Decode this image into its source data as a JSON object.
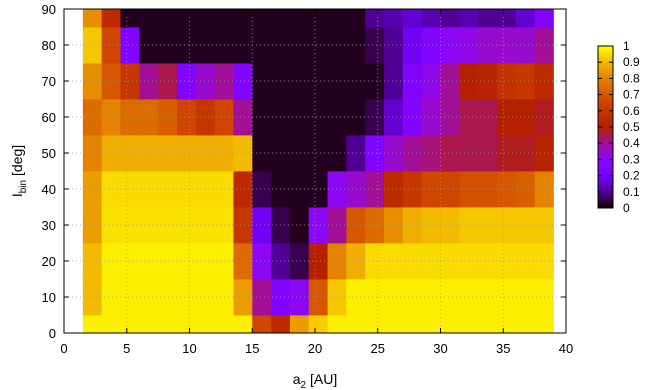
{
  "chart_data": {
    "type": "heatmap",
    "title": "",
    "xlabel": "a",
    "xlabel_sub": "2",
    "xlabel_unit": " [AU]",
    "ylabel": "I",
    "ylabel_sub": "bin",
    "ylabel_unit": " [deg]",
    "xlim": [
      0,
      40
    ],
    "ylim": [
      0,
      90
    ],
    "xticks": [
      "0",
      "5",
      "10",
      "15",
      "20",
      "25",
      "30",
      "35",
      "40"
    ],
    "yticks": [
      "0",
      "10",
      "20",
      "30",
      "40",
      "50",
      "60",
      "70",
      "80",
      "90"
    ],
    "grid": true,
    "colorbar": {
      "range": [
        0,
        1
      ],
      "ticks": [
        "0",
        "0.1",
        "0.2",
        "0.3",
        "0.4",
        "0.5",
        "0.6",
        "0.7",
        "0.8",
        "0.9",
        "1"
      ],
      "placement": "right"
    },
    "x_bins": [
      1.5,
      3,
      4.5,
      6,
      7.5,
      9,
      10.5,
      12,
      13.5,
      15,
      16.5,
      18,
      19.5,
      21,
      22.5,
      24,
      25.5,
      27,
      28.5,
      30,
      31.5,
      33,
      34.5,
      36,
      37.5,
      39
    ],
    "y_bins": [
      0,
      5,
      15,
      25,
      35,
      45,
      55,
      65,
      75,
      85,
      90
    ],
    "values": [
      [
        0.98,
        0.98,
        0.98,
        0.98,
        0.98,
        0.98,
        0.98,
        0.98,
        0.98,
        0.65,
        0.55,
        0.85,
        0.93,
        0.98,
        0.98,
        0.98,
        0.98,
        0.98,
        0.98,
        0.98,
        0.98,
        0.98,
        0.98,
        0.98,
        0.98
      ],
      [
        0.9,
        0.98,
        0.98,
        0.98,
        0.98,
        0.98,
        0.98,
        0.98,
        0.85,
        0.4,
        0.25,
        0.3,
        0.7,
        0.92,
        0.98,
        0.98,
        0.98,
        0.98,
        0.98,
        0.98,
        0.98,
        0.98,
        0.98,
        0.98,
        0.98
      ],
      [
        0.9,
        0.98,
        0.98,
        0.98,
        0.98,
        0.98,
        0.98,
        0.98,
        0.75,
        0.3,
        0.1,
        0.05,
        0.5,
        0.8,
        0.88,
        0.95,
        0.95,
        0.95,
        0.95,
        0.95,
        0.95,
        0.95,
        0.95,
        0.95,
        0.95
      ],
      [
        0.85,
        0.96,
        0.96,
        0.96,
        0.96,
        0.96,
        0.96,
        0.96,
        0.6,
        0.2,
        0.05,
        0.02,
        0.3,
        0.4,
        0.7,
        0.75,
        0.82,
        0.88,
        0.9,
        0.9,
        0.92,
        0.92,
        0.92,
        0.92,
        0.92
      ],
      [
        0.85,
        0.95,
        0.95,
        0.95,
        0.95,
        0.95,
        0.95,
        0.95,
        0.55,
        0.05,
        0.02,
        0.02,
        0.02,
        0.3,
        0.35,
        0.4,
        0.55,
        0.6,
        0.65,
        0.65,
        0.68,
        0.68,
        0.7,
        0.72,
        0.8
      ],
      [
        0.8,
        0.88,
        0.88,
        0.88,
        0.88,
        0.88,
        0.88,
        0.88,
        0.9,
        0.02,
        0.02,
        0.02,
        0.02,
        0.02,
        0.1,
        0.25,
        0.35,
        0.4,
        0.42,
        0.45,
        0.45,
        0.45,
        0.48,
        0.48,
        0.52
      ],
      [
        0.75,
        0.8,
        0.75,
        0.75,
        0.72,
        0.65,
        0.6,
        0.65,
        0.4,
        0.02,
        0.02,
        0.02,
        0.02,
        0.02,
        0.02,
        0.05,
        0.15,
        0.25,
        0.35,
        0.4,
        0.45,
        0.45,
        0.5,
        0.5,
        0.48
      ],
      [
        0.82,
        0.7,
        0.6,
        0.4,
        0.45,
        0.25,
        0.35,
        0.4,
        0.25,
        0.02,
        0.02,
        0.02,
        0.02,
        0.02,
        0.02,
        0.02,
        0.1,
        0.25,
        0.32,
        0.4,
        0.5,
        0.52,
        0.58,
        0.6,
        0.55
      ],
      [
        0.92,
        0.65,
        0.25,
        0.02,
        0.02,
        0.02,
        0.02,
        0.02,
        0.02,
        0.02,
        0.02,
        0.02,
        0.02,
        0.02,
        0.02,
        0.05,
        0.1,
        0.2,
        0.25,
        0.3,
        0.32,
        0.35,
        0.35,
        0.35,
        0.4
      ],
      [
        0.82,
        0.55,
        0.02,
        0.02,
        0.02,
        0.02,
        0.02,
        0.02,
        0.02,
        0.02,
        0.02,
        0.02,
        0.02,
        0.02,
        0.02,
        0.1,
        0.12,
        0.15,
        0.12,
        0.1,
        0.12,
        0.1,
        0.1,
        0.15,
        0.25
      ]
    ]
  }
}
